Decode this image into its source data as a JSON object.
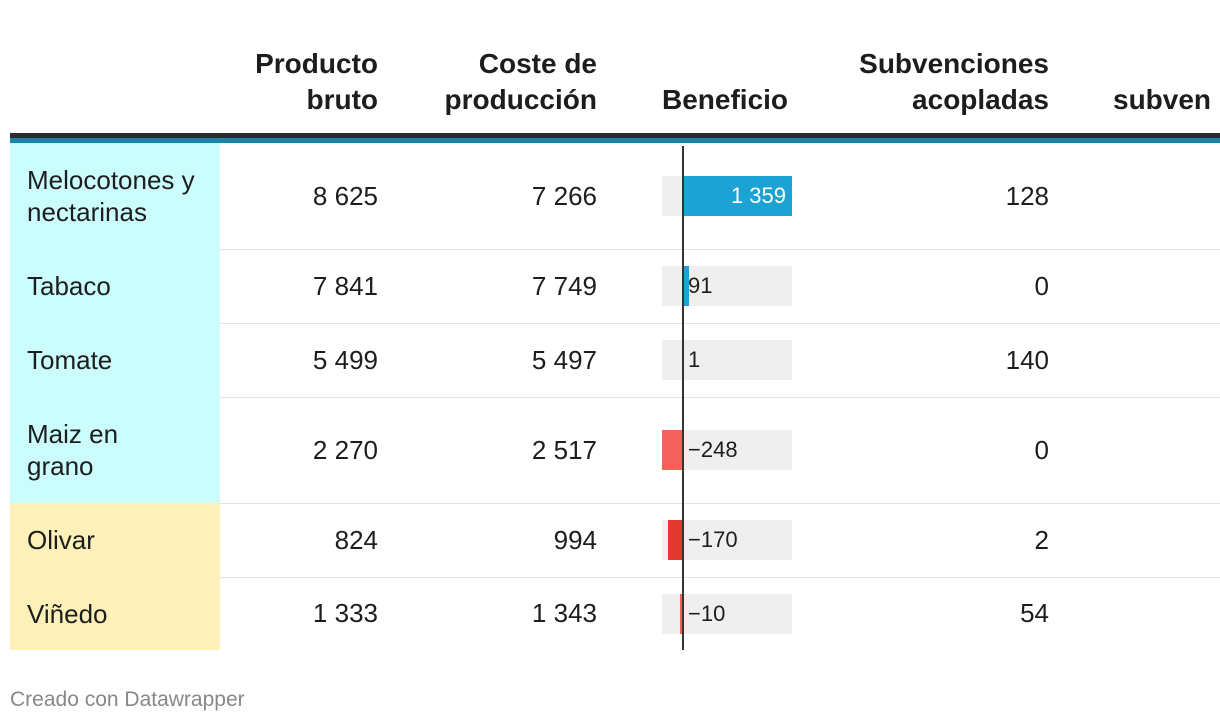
{
  "headers": {
    "producto_bruto": [
      "Producto",
      "bruto"
    ],
    "coste": [
      "Coste de",
      "producción"
    ],
    "beneficio": "Beneficio",
    "subv_acopladas": [
      "Subvenciones",
      "acopladas"
    ],
    "subv_partial": "subven"
  },
  "colors": {
    "group_a": "#cbfdfe",
    "group_b": "#fdf0b9",
    "positive": "#1ca3d3",
    "negative": "#f3635b",
    "negative_dark": "#e2382f",
    "bar_background": "#efefef"
  },
  "chart_data": {
    "type": "table",
    "columns": [
      "",
      "Producto bruto",
      "Coste de producción",
      "Beneficio",
      "Subvenciones acopladas",
      "subven"
    ],
    "bar_domain": [
      -248,
      1359
    ],
    "rows": [
      {
        "name": "Melocotones y nectarinas",
        "producto_bruto": "8 625",
        "coste": "7 266",
        "beneficio": 1359,
        "beneficio_label": "1 359",
        "subvenciones": "128",
        "group": "a"
      },
      {
        "name": "Tabaco",
        "producto_bruto": "7 841",
        "coste": "7 749",
        "beneficio": 91,
        "beneficio_label": "91",
        "subvenciones": "0",
        "group": "a"
      },
      {
        "name": "Tomate",
        "producto_bruto": "5 499",
        "coste": "5 497",
        "beneficio": 1,
        "beneficio_label": "1",
        "subvenciones": "140",
        "group": "a"
      },
      {
        "name": "Maiz en grano",
        "producto_bruto": "2 270",
        "coste": "2 517",
        "beneficio": -248,
        "beneficio_label": "−248",
        "subvenciones": "0",
        "group": "a"
      },
      {
        "name": "Olivar",
        "producto_bruto": "824",
        "coste": "994",
        "beneficio": -170,
        "beneficio_label": "−170",
        "subvenciones": "2",
        "group": "b"
      },
      {
        "name": "Viñedo",
        "producto_bruto": "1 333",
        "coste": "1 343",
        "beneficio": -10,
        "beneficio_label": "−10",
        "subvenciones": "54",
        "group": "b"
      }
    ]
  },
  "footer": "Creado con Datawrapper"
}
